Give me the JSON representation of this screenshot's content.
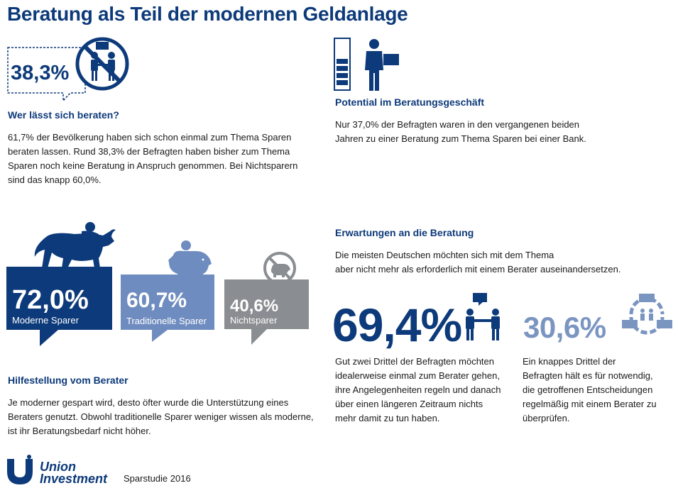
{
  "title": "Beratung als Teil der modernen Geldanlage",
  "colors": {
    "dark_blue": "#0d3a7a",
    "mid_blue": "#5f82bb",
    "light_blue": "#7b95c1",
    "gray": "#8a8d91"
  },
  "section_beraten": {
    "stat": "38,3%",
    "icon": "no-consultation-icon",
    "heading": "Wer lässt sich beraten?",
    "text_lines": [
      "61,7% der Bevölkerung haben sich schon einmal zum Thema Sparen",
      "beraten lassen. Rund 38,3% der Befragten haben bisher zum Thema",
      "Sparen noch keine Beratung in Anspruch genommen. Bei Nichtsparern",
      "sind das knapp 60,0%."
    ]
  },
  "section_potential": {
    "icon": "advisor-with-bar-icon",
    "heading": "Potential im Beratungsgeschäft",
    "text_lines": [
      "Nur 37,0% der Befragten waren in den vergangenen beiden",
      "Jahren zu einer Beratung zum Thema Sparen bei einer Bank."
    ]
  },
  "saver_types": [
    {
      "value": "72,0%",
      "label": "Moderne Sparer",
      "color": "#0d3a7a",
      "icon": "bull-icon"
    },
    {
      "value": "60,7%",
      "label": "Traditionelle Sparer",
      "color": "#6f8cc0",
      "icon": "piggy-bank-icon"
    },
    {
      "value": "40,6%",
      "label": "Nichtsparer",
      "color": "#8a8d91",
      "icon": "no-piggy-bank-icon"
    }
  ],
  "section_hilfe": {
    "heading": "Hilfestellung vom Berater",
    "text_lines": [
      "Je moderner gespart wird, desto öfter wurde die Unterstützung eines",
      "Beraters genutzt. Obwohl traditionelle Sparer weniger wissen als moderne,",
      "ist ihr Beratungsbedarf nicht höher."
    ]
  },
  "section_erwartungen": {
    "heading": "Erwartungen an die Beratung",
    "text_lines": [
      "Die meisten Deutschen möchten sich mit dem Thema",
      "aber nicht mehr als erforderlich mit einem Berater auseinandersetzen."
    ],
    "left": {
      "value": "69,4%",
      "icon": "handshake-icon",
      "text_lines": [
        "Gut zwei Drittel der Befragten möchten",
        "idealerweise einmal zum Berater gehen,",
        "ihre Angelegenheiten regeln und danach",
        "über einen längeren Zeitraum nichts",
        "mehr damit zu tun haben."
      ]
    },
    "right": {
      "value": "30,6%",
      "icon": "recurring-meeting-icon",
      "text_lines": [
        "Ein knappes Drittel der",
        "Befragten hält es für notwendig,",
        "die getroffenen Entscheidungen",
        "regelmäßig mit einem Berater zu",
        "überprüfen."
      ]
    }
  },
  "footer": {
    "logo_line1": "Union",
    "logo_line2": "Investment",
    "note": "Sparstudie 2016"
  }
}
